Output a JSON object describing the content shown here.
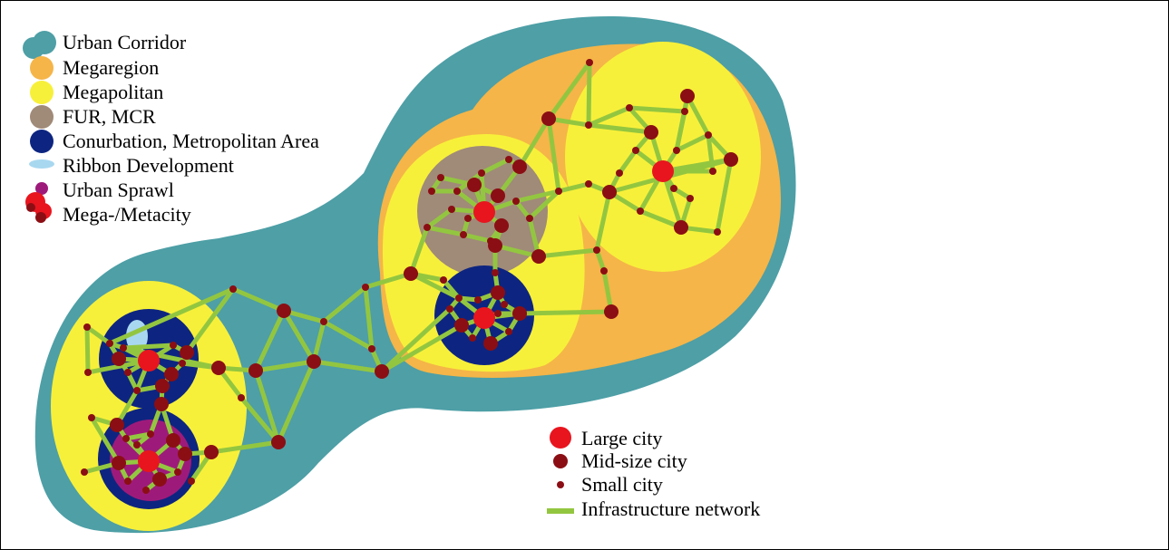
{
  "legend_top": {
    "items": [
      {
        "key": "urban_corridor",
        "label": "Urban Corridor",
        "color": "#4e9fa6"
      },
      {
        "key": "megaregion",
        "label": "Megaregion",
        "color": "#f5b548"
      },
      {
        "key": "megapolitan",
        "label": "Megapolitan",
        "color": "#f7f03a"
      },
      {
        "key": "fur_mcr",
        "label": "FUR, MCR",
        "color": "#a08a78"
      },
      {
        "key": "conurbation",
        "label": "Conurbation, Metropolitan Area",
        "color": "#0d2580"
      },
      {
        "key": "ribbon",
        "label": "Ribbon Development",
        "color": "#a8d8f0"
      },
      {
        "key": "sprawl",
        "label": "Urban Sprawl",
        "color": "#9e1a7a"
      },
      {
        "key": "megacity",
        "label": "Mega-/Metacity",
        "color": "#b3121a"
      }
    ]
  },
  "legend_bottom": {
    "items": [
      {
        "key": "large_city",
        "label": "Large city",
        "color": "#e8151e"
      },
      {
        "key": "mid_city",
        "label": "Mid-size city",
        "color": "#8b0e14"
      },
      {
        "key": "small_city",
        "label": "Small city",
        "color": "#8b0e14"
      },
      {
        "key": "infrastructure",
        "label": "Infrastructure network",
        "color": "#93c640"
      }
    ]
  },
  "colors": {
    "corridor": "#4e9fa6",
    "megaregion": "#f5b548",
    "megapolitan": "#f7f03a",
    "fur": "#a08a78",
    "conurbation": "#0d2580",
    "sprawl": "#9e1a7a",
    "ribbon": "#a8d8f0",
    "large_city": "#e8151e",
    "mid_city": "#8b0e14",
    "small_city": "#8b0e14",
    "network": "#93c640"
  }
}
